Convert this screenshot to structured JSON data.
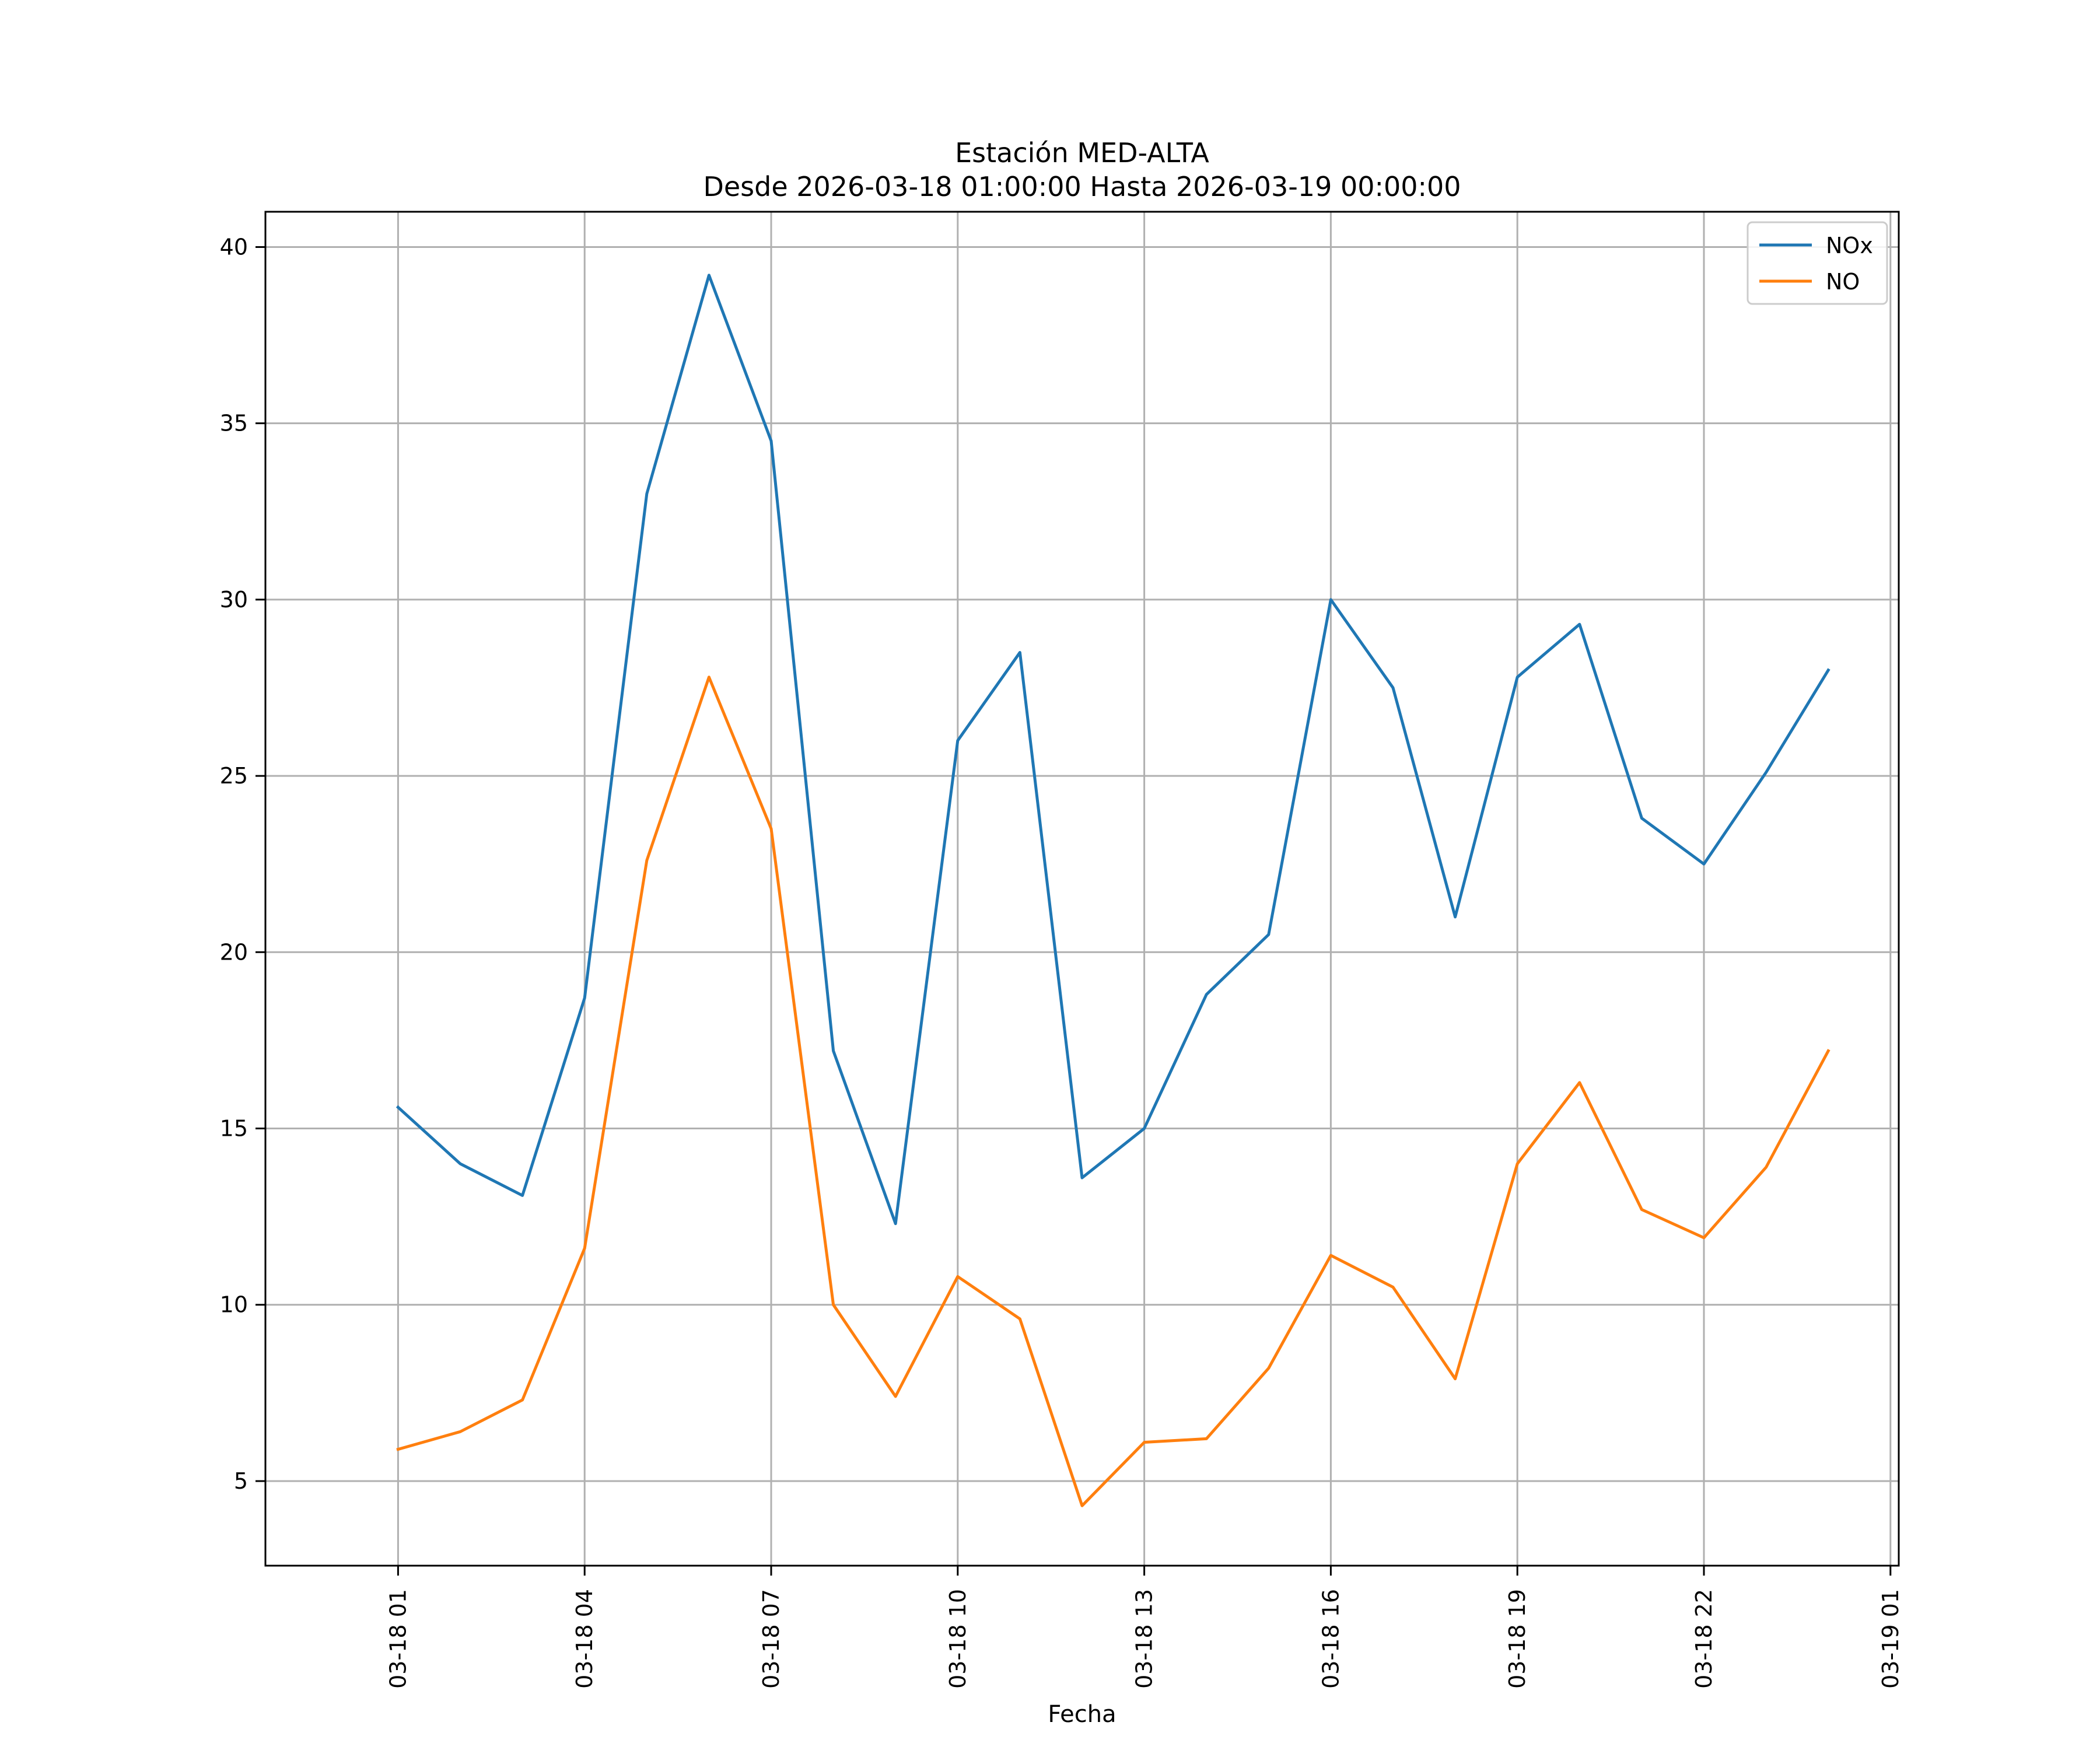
{
  "chart_data": {
    "type": "line",
    "title": "Estación MED-ALTA",
    "subtitle": "Desde 2026-03-18 01:00:00 Hasta 2026-03-19 00:00:00",
    "xlabel": "Fecha",
    "ylabel": "",
    "x": [
      "2026-03-18 01:00",
      "2026-03-18 02:00",
      "2026-03-18 03:00",
      "2026-03-18 04:00",
      "2026-03-18 05:00",
      "2026-03-18 06:00",
      "2026-03-18 07:00",
      "2026-03-18 08:00",
      "2026-03-18 09:00",
      "2026-03-18 10:00",
      "2026-03-18 11:00",
      "2026-03-18 12:00",
      "2026-03-18 13:00",
      "2026-03-18 14:00",
      "2026-03-18 15:00",
      "2026-03-18 16:00",
      "2026-03-18 17:00",
      "2026-03-18 18:00",
      "2026-03-18 19:00",
      "2026-03-18 20:00",
      "2026-03-18 21:00",
      "2026-03-18 22:00",
      "2026-03-18 23:00",
      "2026-03-19 00:00"
    ],
    "xlim": [
      "2026-03-17 22:52",
      "2026-03-19 01:08"
    ],
    "xticks": [
      "2026-03-18 01:00",
      "2026-03-18 04:00",
      "2026-03-18 07:00",
      "2026-03-18 10:00",
      "2026-03-18 13:00",
      "2026-03-18 16:00",
      "2026-03-18 19:00",
      "2026-03-18 22:00",
      "2026-03-19 01:00"
    ],
    "xtick_labels": [
      "03-18 01",
      "03-18 04",
      "03-18 07",
      "03-18 10",
      "03-18 13",
      "03-18 16",
      "03-18 19",
      "03-18 22",
      "03-19 01"
    ],
    "ylim": [
      2.6,
      41.0
    ],
    "yticks": [
      5,
      10,
      15,
      20,
      25,
      30,
      35,
      40
    ],
    "grid": true,
    "legend": "top-right",
    "series": [
      {
        "name": "NOx",
        "color": "#1f77b4",
        "values": [
          15.6,
          14.0,
          13.1,
          18.7,
          33.0,
          39.2,
          34.5,
          17.2,
          12.3,
          26.0,
          28.5,
          13.6,
          15.0,
          18.8,
          20.5,
          30.0,
          27.5,
          21.0,
          27.8,
          29.3,
          23.8,
          22.5,
          25.1,
          28.0
        ]
      },
      {
        "name": "NO",
        "color": "#ff7f0e",
        "values": [
          5.9,
          6.4,
          7.3,
          11.6,
          22.6,
          27.8,
          23.5,
          10.0,
          7.4,
          10.8,
          9.6,
          4.3,
          6.1,
          6.2,
          8.2,
          11.4,
          10.5,
          7.9,
          14.0,
          16.3,
          12.7,
          11.9,
          13.9,
          17.2
        ]
      }
    ]
  }
}
